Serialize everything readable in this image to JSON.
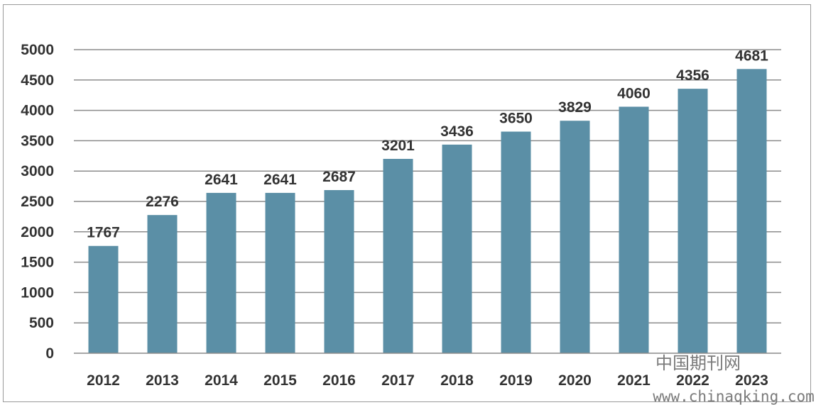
{
  "chart_data": {
    "type": "bar",
    "categories": [
      "2012",
      "2013",
      "2014",
      "2015",
      "2016",
      "2017",
      "2018",
      "2019",
      "2020",
      "2021",
      "2022",
      "2023"
    ],
    "values": [
      1767,
      2276,
      2641,
      2641,
      2687,
      3201,
      3436,
      3650,
      3829,
      4060,
      4356,
      4681
    ],
    "title": "",
    "xlabel": "",
    "ylabel": "",
    "ylim": [
      0,
      5000
    ],
    "yticks": [
      0,
      500,
      1000,
      1500,
      2000,
      2500,
      3000,
      3500,
      4000,
      4500,
      5000
    ],
    "grid": true,
    "legend": "none",
    "bar_color": "#5b8fa6",
    "grid_color": "#8c8c8c",
    "data_labels": true
  },
  "watermark": {
    "cn_text": "中国期刊网",
    "url_text": "www.chinaqking.com"
  }
}
